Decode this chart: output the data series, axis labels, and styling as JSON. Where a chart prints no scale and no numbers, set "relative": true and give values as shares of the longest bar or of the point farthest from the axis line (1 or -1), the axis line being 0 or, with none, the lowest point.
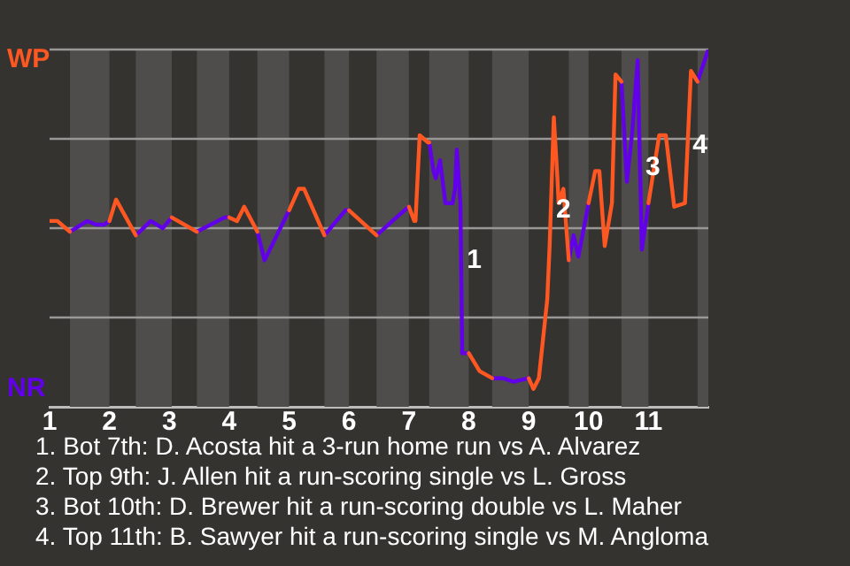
{
  "chart_data": {
    "type": "line",
    "relative": true,
    "grid": "y",
    "legend": false,
    "marker": "none",
    "line_style": "solid",
    "xlim": [
      1,
      12
    ],
    "xticks": [
      1,
      2,
      3,
      4,
      5,
      6,
      7,
      8,
      9,
      10,
      11
    ],
    "series": [
      {
        "name": "WP",
        "color": "#ff5722",
        "x": [
          1.0,
          1.13,
          1.34,
          null,
          2.0,
          2.11,
          2.44,
          null,
          3.04,
          3.46,
          null,
          4.0,
          4.13,
          4.25,
          4.47,
          null,
          5.0,
          5.16,
          5.25,
          5.59,
          null,
          6.0,
          6.46,
          null,
          7.0,
          7.09,
          7.11,
          7.18,
          7.32,
          7.34,
          null,
          8.0,
          8.18,
          8.39,
          null,
          9.0,
          9.08,
          9.17,
          9.31,
          9.35,
          9.42,
          9.48,
          9.5,
          9.58,
          9.67,
          null,
          10.0,
          10.11,
          10.18,
          10.27,
          10.39,
          10.45,
          10.55,
          null,
          11.0,
          11.18,
          11.29,
          11.43,
          11.61,
          11.71,
          11.82
        ],
        "values": [
          0.52,
          0.52,
          0.49,
          null,
          0.52,
          0.58,
          0.48,
          null,
          0.53,
          0.49,
          null,
          0.53,
          0.52,
          0.56,
          0.49,
          null,
          0.55,
          0.61,
          0.61,
          0.48,
          null,
          0.55,
          0.48,
          null,
          0.56,
          0.52,
          0.52,
          0.76,
          0.74,
          0.74,
          null,
          0.15,
          0.1,
          0.08,
          null,
          0.08,
          0.05,
          0.08,
          0.3,
          0.45,
          0.81,
          0.64,
          0.57,
          0.61,
          0.41,
          null,
          0.57,
          0.66,
          0.66,
          0.45,
          0.57,
          0.93,
          0.91,
          null,
          0.57,
          0.76,
          0.76,
          0.56,
          0.57,
          0.94,
          0.91
        ]
      },
      {
        "name": "NR",
        "color": "#6200ea",
        "x": [
          1.34,
          1.63,
          1.78,
          1.91,
          2.0,
          null,
          2.44,
          2.69,
          2.89,
          3.04,
          null,
          3.46,
          3.92,
          4.0,
          null,
          4.47,
          4.59,
          5.0,
          null,
          5.59,
          5.94,
          6.0,
          null,
          6.46,
          6.79,
          7.0,
          null,
          7.34,
          7.41,
          7.45,
          7.52,
          7.61,
          7.73,
          7.77,
          7.8,
          7.86,
          7.89,
          8.0,
          null,
          8.39,
          8.57,
          8.75,
          9.0,
          null,
          9.67,
          9.75,
          9.83,
          10.0,
          null,
          10.55,
          10.64,
          10.73,
          10.82,
          10.89,
          11.0,
          null,
          11.82,
          12.0
        ],
        "values": [
          0.49,
          0.52,
          0.51,
          0.51,
          0.52,
          null,
          0.48,
          0.52,
          0.5,
          0.53,
          null,
          0.49,
          0.53,
          0.53,
          null,
          0.49,
          0.41,
          0.55,
          null,
          0.48,
          0.55,
          0.55,
          null,
          0.48,
          0.53,
          0.56,
          null,
          0.74,
          0.66,
          0.64,
          0.69,
          0.57,
          0.57,
          0.61,
          0.72,
          0.57,
          0.15,
          0.15,
          null,
          0.08,
          0.08,
          0.07,
          0.08,
          null,
          0.41,
          0.48,
          0.42,
          0.57,
          null,
          0.91,
          0.63,
          0.77,
          0.97,
          0.44,
          0.57,
          null,
          0.91,
          1
        ]
      }
    ],
    "bands": [
      {
        "axis": "x",
        "from": 1.34,
        "to": 2.0,
        "color": "#4e4d4b"
      },
      {
        "axis": "x",
        "from": 2.44,
        "to": 3.04,
        "color": "#4e4d4b"
      },
      {
        "axis": "x",
        "from": 3.46,
        "to": 4.0,
        "color": "#4e4d4b"
      },
      {
        "axis": "x",
        "from": 4.47,
        "to": 5.0,
        "color": "#4e4d4b"
      },
      {
        "axis": "x",
        "from": 5.59,
        "to": 6.0,
        "color": "#4e4d4b"
      },
      {
        "axis": "x",
        "from": 6.46,
        "to": 7.0,
        "color": "#4e4d4b"
      },
      {
        "axis": "x",
        "from": 7.34,
        "to": 8.0,
        "color": "#4e4d4b"
      },
      {
        "axis": "x",
        "from": 8.39,
        "to": 9.0,
        "color": "#4e4d4b"
      },
      {
        "axis": "x",
        "from": 9.67,
        "to": 10.0,
        "color": "#4e4d4b"
      },
      {
        "axis": "x",
        "from": 10.55,
        "to": 11.0,
        "color": "#4e4d4b"
      },
      {
        "axis": "x",
        "from": 11.82,
        "to": 12.0,
        "color": "#4e4d4b"
      }
    ],
    "annotations": [
      {
        "text": "1",
        "x": 7.88,
        "y": 0.41
      },
      {
        "text": "2",
        "x": 9.37,
        "y": 0.55
      },
      {
        "text": "3",
        "x": 10.86,
        "y": 0.67
      },
      {
        "text": "4",
        "x": 11.65,
        "y": 0.73
      },
      "1. Bot 7th: D. Acosta hit a 3-run home run vs A. Alvarez",
      "2. Top 9th: J. Allen hit a run-scoring single vs L. Gross",
      "3. Bot 10th: D. Brewer hit a run-scoring double vs L. Maher",
      "4. Top 11th: B. Sawyer hit a run-scoring single vs M. Angloma"
    ]
  }
}
